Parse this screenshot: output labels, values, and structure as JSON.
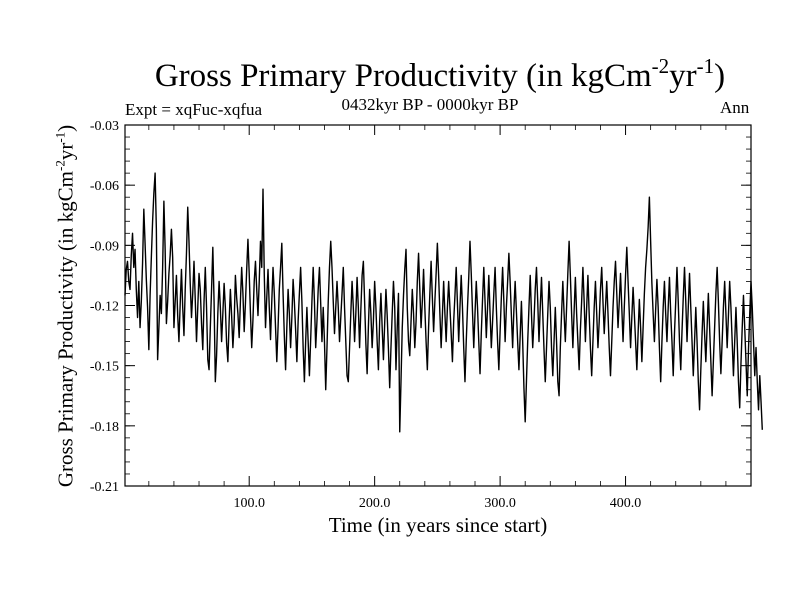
{
  "chart_data": {
    "type": "line",
    "title": "Gross Primary Productivity (in kgCm",
    "title_sup1": "-2",
    "title_mid": "yr",
    "title_sup2": "-1",
    "title_close": ")",
    "subtitle_left": "Expt = xqFuc-xqfua",
    "subtitle_center": "0432kyr BP - 0000kyr BP",
    "subtitle_right": "Ann",
    "xlabel": "Time (in years since start)",
    "ylabel": "Gross Primary Productivity (in kgCm",
    "ylabel_sup1": "-2",
    "ylabel_mid": "yr",
    "ylabel_sup2": "-1",
    "ylabel_close": ")",
    "xlim": [
      1,
      500
    ],
    "ylim": [
      -0.21,
      -0.03
    ],
    "xticks": [
      100,
      200,
      300,
      400
    ],
    "xtick_labels": [
      "100.0",
      "200.0",
      "300.0",
      "400.0"
    ],
    "yticks": [
      -0.03,
      -0.06,
      -0.09,
      -0.12,
      -0.15,
      -0.18,
      -0.21
    ],
    "ytick_labels": [
      "-0.03",
      "-0.06",
      "-0.09",
      "-0.12",
      "-0.15",
      "-0.18",
      "-0.21"
    ],
    "grid": false,
    "series": [
      {
        "name": "Ann",
        "x_start": 1,
        "x_step": 1,
        "values": [
          -0.115,
          -0.102,
          -0.098,
          -0.108,
          -0.112,
          -0.095,
          -0.084,
          -0.101,
          -0.092,
          -0.112,
          -0.126,
          -0.108,
          -0.131,
          -0.118,
          -0.099,
          -0.072,
          -0.089,
          -0.107,
          -0.121,
          -0.142,
          -0.115,
          -0.096,
          -0.078,
          -0.064,
          -0.054,
          -0.082,
          -0.147,
          -0.131,
          -0.115,
          -0.124,
          -0.101,
          -0.068,
          -0.092,
          -0.129,
          -0.118,
          -0.104,
          -0.095,
          -0.082,
          -0.096,
          -0.131,
          -0.118,
          -0.105,
          -0.125,
          -0.138,
          -0.119,
          -0.102,
          -0.121,
          -0.135,
          -0.112,
          -0.094,
          -0.071,
          -0.088,
          -0.109,
          -0.126,
          -0.114,
          -0.098,
          -0.117,
          -0.138,
          -0.121,
          -0.104,
          -0.112,
          -0.129,
          -0.142,
          -0.118,
          -0.101,
          -0.121,
          -0.147,
          -0.152,
          -0.131,
          -0.112,
          -0.091,
          -0.118,
          -0.158,
          -0.145,
          -0.124,
          -0.108,
          -0.121,
          -0.138,
          -0.124,
          -0.109,
          -0.121,
          -0.139,
          -0.148,
          -0.128,
          -0.112,
          -0.125,
          -0.141,
          -0.129,
          -0.105,
          -0.116,
          -0.124,
          -0.136,
          -0.118,
          -0.101,
          -0.114,
          -0.133,
          -0.119,
          -0.102,
          -0.087,
          -0.104,
          -0.124,
          -0.141,
          -0.127,
          -0.108,
          -0.098,
          -0.112,
          -0.125,
          -0.108,
          -0.088,
          -0.101,
          -0.062,
          -0.104,
          -0.131,
          -0.116,
          -0.102,
          -0.121,
          -0.137,
          -0.118,
          -0.101,
          -0.114,
          -0.131,
          -0.148,
          -0.131,
          -0.112,
          -0.101,
          -0.089,
          -0.114,
          -0.135,
          -0.152,
          -0.131,
          -0.112,
          -0.124,
          -0.141,
          -0.126,
          -0.107,
          -0.118,
          -0.132,
          -0.148,
          -0.128,
          -0.114,
          -0.101,
          -0.118,
          -0.141,
          -0.158,
          -0.138,
          -0.121,
          -0.138,
          -0.155,
          -0.137,
          -0.118,
          -0.101,
          -0.118,
          -0.141,
          -0.128,
          -0.112,
          -0.101,
          -0.119,
          -0.138,
          -0.121,
          -0.138,
          -0.162,
          -0.141,
          -0.118,
          -0.101,
          -0.088,
          -0.101,
          -0.118,
          -0.134,
          -0.121,
          -0.108,
          -0.121,
          -0.138,
          -0.126,
          -0.114,
          -0.101,
          -0.121,
          -0.138,
          -0.155,
          -0.158,
          -0.141,
          -0.124,
          -0.108,
          -0.121,
          -0.138,
          -0.124,
          -0.106,
          -0.121,
          -0.141,
          -0.122,
          -0.105,
          -0.098,
          -0.118,
          -0.139,
          -0.154,
          -0.131,
          -0.112,
          -0.124,
          -0.141,
          -0.128,
          -0.108,
          -0.121,
          -0.138,
          -0.152,
          -0.128,
          -0.114,
          -0.131,
          -0.147,
          -0.129,
          -0.112,
          -0.125,
          -0.142,
          -0.161,
          -0.141,
          -0.124,
          -0.108,
          -0.121,
          -0.152,
          -0.131,
          -0.114,
          -0.183,
          -0.158,
          -0.131,
          -0.115,
          -0.102,
          -0.092,
          -0.121,
          -0.138,
          -0.145,
          -0.128,
          -0.112,
          -0.124,
          -0.141,
          -0.128,
          -0.108,
          -0.094,
          -0.112,
          -0.131,
          -0.118,
          -0.102,
          -0.121,
          -0.138,
          -0.152,
          -0.131,
          -0.114,
          -0.098,
          -0.116,
          -0.133,
          -0.118,
          -0.104,
          -0.089,
          -0.105,
          -0.124,
          -0.141,
          -0.125,
          -0.108,
          -0.124,
          -0.138,
          -0.121,
          -0.108,
          -0.121,
          -0.134,
          -0.148,
          -0.128,
          -0.115,
          -0.101,
          -0.119,
          -0.138,
          -0.121,
          -0.105,
          -0.121,
          -0.141,
          -0.158,
          -0.138,
          -0.121,
          -0.106,
          -0.088,
          -0.104,
          -0.123,
          -0.141,
          -0.124,
          -0.108,
          -0.121,
          -0.138,
          -0.154,
          -0.134,
          -0.117,
          -0.101,
          -0.118,
          -0.136,
          -0.121,
          -0.105,
          -0.124,
          -0.141,
          -0.128,
          -0.114,
          -0.101,
          -0.121,
          -0.138,
          -0.152,
          -0.133,
          -0.116,
          -0.101,
          -0.118,
          -0.138,
          -0.121,
          -0.108,
          -0.094,
          -0.108,
          -0.125,
          -0.141,
          -0.122,
          -0.108,
          -0.123,
          -0.138,
          -0.152,
          -0.135,
          -0.118,
          -0.138,
          -0.161,
          -0.178,
          -0.158,
          -0.138,
          -0.121,
          -0.105,
          -0.124,
          -0.141,
          -0.128,
          -0.112,
          -0.101,
          -0.118,
          -0.138,
          -0.121,
          -0.106,
          -0.124,
          -0.142,
          -0.158,
          -0.141,
          -0.124,
          -0.108,
          -0.121,
          -0.141,
          -0.155,
          -0.138,
          -0.121,
          -0.138,
          -0.158,
          -0.165,
          -0.141,
          -0.124,
          -0.108,
          -0.124,
          -0.138,
          -0.121,
          -0.104,
          -0.088,
          -0.105,
          -0.124,
          -0.141,
          -0.123,
          -0.106,
          -0.124,
          -0.138,
          -0.152,
          -0.132,
          -0.118,
          -0.101,
          -0.118,
          -0.138,
          -0.121,
          -0.105,
          -0.124,
          -0.141,
          -0.155,
          -0.138,
          -0.121,
          -0.108,
          -0.124,
          -0.141,
          -0.128,
          -0.112,
          -0.101,
          -0.118,
          -0.134,
          -0.121,
          -0.108,
          -0.124,
          -0.141,
          -0.155,
          -0.138,
          -0.121,
          -0.108,
          -0.098,
          -0.114,
          -0.131,
          -0.118,
          -0.104,
          -0.121,
          -0.138,
          -0.121,
          -0.105,
          -0.091,
          -0.108,
          -0.124,
          -0.141,
          -0.126,
          -0.111,
          -0.124,
          -0.138,
          -0.152,
          -0.134,
          -0.117,
          -0.131,
          -0.148,
          -0.131,
          -0.114,
          -0.101,
          -0.092,
          -0.081,
          -0.066,
          -0.088,
          -0.109,
          -0.124,
          -0.138,
          -0.122,
          -0.107,
          -0.121,
          -0.141,
          -0.158,
          -0.138,
          -0.121,
          -0.108,
          -0.124,
          -0.138,
          -0.121,
          -0.106,
          -0.124,
          -0.138,
          -0.155,
          -0.134,
          -0.118,
          -0.101,
          -0.118,
          -0.138,
          -0.152,
          -0.133,
          -0.116,
          -0.101,
          -0.118,
          -0.138,
          -0.121,
          -0.104,
          -0.121,
          -0.138,
          -0.155,
          -0.138,
          -0.121,
          -0.138,
          -0.158,
          -0.172,
          -0.152,
          -0.134,
          -0.118,
          -0.134,
          -0.148,
          -0.131,
          -0.114,
          -0.131,
          -0.148,
          -0.165,
          -0.148,
          -0.131,
          -0.114,
          -0.101,
          -0.118,
          -0.138,
          -0.154,
          -0.138,
          -0.121,
          -0.108,
          -0.124,
          -0.141,
          -0.125,
          -0.108,
          -0.121,
          -0.138,
          -0.155,
          -0.138,
          -0.121,
          -0.138,
          -0.158,
          -0.171,
          -0.149,
          -0.131,
          -0.115,
          -0.131,
          -0.148,
          -0.165,
          -0.142,
          -0.124,
          -0.108,
          -0.121,
          -0.138,
          -0.155,
          -0.141,
          -0.158,
          -0.172,
          -0.155,
          -0.168,
          -0.182
        ]
      }
    ]
  }
}
